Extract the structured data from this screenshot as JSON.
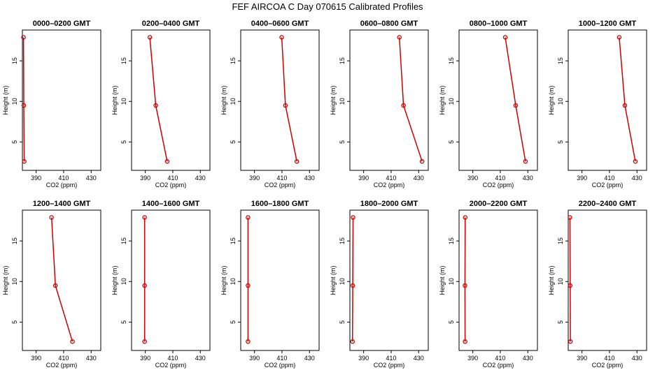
{
  "figure": {
    "title": "FEF AIRCOA C  Day 070615  Calibrated Profiles"
  },
  "colors": {
    "series": "#cc0000",
    "axes": "#000000"
  },
  "chart_data": [
    {
      "type": "line",
      "title": "0000–0200 GMT",
      "xlabel": "CO2 (ppm)",
      "ylabel": "Height (m)",
      "xlim": [
        380,
        437
      ],
      "ylim": [
        1.5,
        18.8
      ],
      "xticks": [
        390,
        410,
        430
      ],
      "yticks": [
        5,
        10,
        15
      ],
      "series": [
        {
          "x": [
            381.3,
            381.0,
            380.8
          ],
          "y": [
            2.6,
            9.5,
            17.9
          ]
        }
      ]
    },
    {
      "type": "line",
      "title": "0200–0400 GMT",
      "xlabel": "CO2 (ppm)",
      "ylabel": "Height (m)",
      "xlim": [
        380,
        437
      ],
      "ylim": [
        1.5,
        18.8
      ],
      "xticks": [
        390,
        410,
        430
      ],
      "yticks": [
        5,
        10,
        15
      ],
      "series": [
        {
          "x": [
            405.9,
            397.6,
            393.3
          ],
          "y": [
            2.6,
            9.5,
            17.9
          ]
        }
      ]
    },
    {
      "type": "line",
      "title": "0400–0600 GMT",
      "xlabel": "CO2 (ppm)",
      "ylabel": "Height (m)",
      "xlim": [
        380,
        437
      ],
      "ylim": [
        1.5,
        18.8
      ],
      "xticks": [
        390,
        410,
        430
      ],
      "yticks": [
        5,
        10,
        15
      ],
      "series": [
        {
          "x": [
            420.8,
            412.5,
            409.8
          ],
          "y": [
            2.6,
            9.5,
            17.9
          ]
        }
      ]
    },
    {
      "type": "line",
      "title": "0600–0800 GMT",
      "xlabel": "CO2 (ppm)",
      "ylabel": "Height (m)",
      "xlim": [
        380,
        437
      ],
      "ylim": [
        1.5,
        18.8
      ],
      "xticks": [
        390,
        410,
        430
      ],
      "yticks": [
        5,
        10,
        15
      ],
      "series": [
        {
          "x": [
            432.5,
            419.0,
            416.0
          ],
          "y": [
            2.6,
            9.5,
            17.9
          ]
        }
      ]
    },
    {
      "type": "line",
      "title": "0800–1000 GMT",
      "xlabel": "CO2 (ppm)",
      "ylabel": "Height (m)",
      "xlim": [
        380,
        437
      ],
      "ylim": [
        1.5,
        18.8
      ],
      "xticks": [
        390,
        410,
        430
      ],
      "yticks": [
        5,
        10,
        15
      ],
      "series": [
        {
          "x": [
            428.3,
            421.2,
            413.6
          ],
          "y": [
            2.6,
            9.5,
            17.9
          ]
        }
      ]
    },
    {
      "type": "line",
      "title": "1000–1200 GMT",
      "xlabel": "CO2 (ppm)",
      "ylabel": "Height (m)",
      "xlim": [
        380,
        437
      ],
      "ylim": [
        1.5,
        18.8
      ],
      "xticks": [
        390,
        410,
        430
      ],
      "yticks": [
        5,
        10,
        15
      ],
      "series": [
        {
          "x": [
            428.8,
            421.2,
            417.1
          ],
          "y": [
            2.6,
            9.5,
            17.9
          ]
        }
      ]
    },
    {
      "type": "line",
      "title": "1200–1400 GMT",
      "xlabel": "CO2 (ppm)",
      "ylabel": "Height (m)",
      "xlim": [
        380,
        437
      ],
      "ylim": [
        1.5,
        18.8
      ],
      "xticks": [
        390,
        410,
        430
      ],
      "yticks": [
        5,
        10,
        15
      ],
      "series": [
        {
          "x": [
            416.4,
            404.0,
            401.2
          ],
          "y": [
            2.6,
            9.5,
            17.9
          ]
        }
      ]
    },
    {
      "type": "line",
      "title": "1400–1600 GMT",
      "xlabel": "CO2 (ppm)",
      "ylabel": "Height (m)",
      "xlim": [
        380,
        437
      ],
      "ylim": [
        1.5,
        18.8
      ],
      "xticks": [
        390,
        410,
        430
      ],
      "yticks": [
        5,
        10,
        15
      ],
      "series": [
        {
          "x": [
            389.5,
            389.5,
            389.5
          ],
          "y": [
            2.6,
            9.5,
            17.9
          ]
        }
      ]
    },
    {
      "type": "line",
      "title": "1600–1800 GMT",
      "xlabel": "CO2 (ppm)",
      "ylabel": "Height (m)",
      "xlim": [
        380,
        437
      ],
      "ylim": [
        1.5,
        18.8
      ],
      "xticks": [
        390,
        410,
        430
      ],
      "yticks": [
        5,
        10,
        15
      ],
      "series": [
        {
          "x": [
            385.3,
            385.3,
            385.3
          ],
          "y": [
            2.6,
            9.5,
            17.9
          ]
        }
      ]
    },
    {
      "type": "line",
      "title": "1800–2000 GMT",
      "xlabel": "CO2 (ppm)",
      "ylabel": "Height (m)",
      "xlim": [
        380,
        437
      ],
      "ylim": [
        1.5,
        18.8
      ],
      "xticks": [
        390,
        410,
        430
      ],
      "yticks": [
        5,
        10,
        15
      ],
      "series": [
        {
          "x": [
            381.9,
            382.1,
            382.3
          ],
          "y": [
            2.6,
            9.5,
            17.9
          ]
        }
      ]
    },
    {
      "type": "line",
      "title": "2000–2200 GMT",
      "xlabel": "CO2 (ppm)",
      "ylabel": "Height (m)",
      "xlim": [
        380,
        437
      ],
      "ylim": [
        1.5,
        18.8
      ],
      "xticks": [
        390,
        410,
        430
      ],
      "yticks": [
        5,
        10,
        15
      ],
      "series": [
        {
          "x": [
            384.4,
            384.3,
            384.5
          ],
          "y": [
            2.6,
            9.5,
            17.9
          ]
        }
      ]
    },
    {
      "type": "line",
      "title": "2200–2400 GMT",
      "xlabel": "CO2 (ppm)",
      "ylabel": "Height (m)",
      "xlim": [
        380,
        437
      ],
      "ylim": [
        1.5,
        18.8
      ],
      "xticks": [
        390,
        410,
        430
      ],
      "yticks": [
        5,
        10,
        15
      ],
      "series": [
        {
          "x": [
            381.6,
            381.4,
            381.2
          ],
          "y": [
            2.6,
            9.5,
            17.9
          ]
        }
      ]
    }
  ]
}
